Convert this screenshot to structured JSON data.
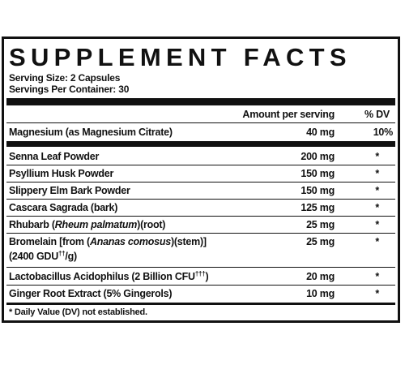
{
  "title": "SUPPLEMENT FACTS",
  "serving_size": "Serving Size: 2 Capsules",
  "servings_per_container": "Servings Per Container: 30",
  "header": {
    "amount": "Amount per serving",
    "dv": "% DV"
  },
  "rows": [
    {
      "name": "Magnesium (as Magnesium Citrate)",
      "amount": "40 mg",
      "dv": "10%"
    },
    {
      "name": "Senna Leaf Powder",
      "amount": "200 mg",
      "dv": "*"
    },
    {
      "name": "Psyllium Husk Powder",
      "amount": "150 mg",
      "dv": "*"
    },
    {
      "name": "Slippery Elm Bark Powder",
      "amount": "150 mg",
      "dv": "*"
    },
    {
      "name": "Cascara Sagrada (bark)",
      "amount": "125 mg",
      "dv": "*"
    },
    {
      "name_pre": "Rhubarb (",
      "name_italic": "Rheum palmatum",
      "name_post": ")(root)",
      "amount": "25 mg",
      "dv": "*"
    },
    {
      "name_pre": "Bromelain [from (",
      "name_italic": "Ananas comosus",
      "name_post": ")(stem)]",
      "line2_pre": "(2400 GDU",
      "line2_sup": "††",
      "line2_post": "/g)",
      "amount": "25 mg",
      "dv": "*"
    },
    {
      "name_pre": "Lactobacillus Acidophilus (2 Billion CFU",
      "name_sup": "†††",
      "name_post": ")",
      "amount": "20 mg",
      "dv": "*"
    },
    {
      "name": "Ginger Root Extract (5% Gingerols)",
      "amount": "10 mg",
      "dv": "*"
    }
  ],
  "footnote": "* Daily Value (DV) not established."
}
